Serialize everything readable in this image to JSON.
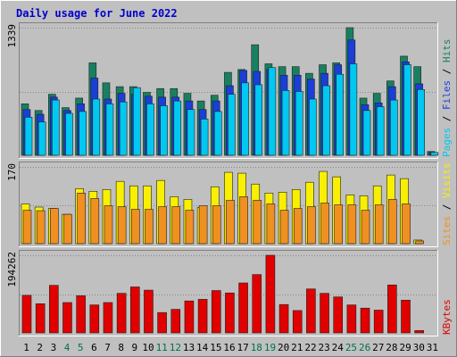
{
  "chart_data": {
    "type": "bar",
    "title": "Daily usage for June 2022",
    "categories": [
      "1",
      "2",
      "3",
      "4",
      "5",
      "6",
      "7",
      "8",
      "9",
      "10",
      "11",
      "12",
      "13",
      "14",
      "15",
      "16",
      "17",
      "18",
      "19",
      "20",
      "21",
      "22",
      "23",
      "24",
      "25",
      "26",
      "27",
      "28",
      "29",
      "30",
      "31"
    ],
    "weekend_categories": [
      "4",
      "5",
      "11",
      "12",
      "18",
      "19",
      "25",
      "26"
    ],
    "colors": {
      "background": "#c0c0c0",
      "plot": "#c0c0c0",
      "title": "#0000cc",
      "weekday_label": "#000000",
      "weekend_label": "#007050"
    },
    "panels": [
      {
        "name": "hits-files-pages",
        "ymax_label": "1339",
        "ylim": [
          0,
          1339
        ],
        "legend": [
          {
            "text": "Pages",
            "color": "#00c8f0"
          },
          {
            "text": " / ",
            "color": "#000000"
          },
          {
            "text": "Files",
            "color": "#1a3ed8"
          },
          {
            "text": " / ",
            "color": "#000000"
          },
          {
            "text": "Hits",
            "color": "#188060"
          }
        ],
        "series": [
          {
            "name": "Hits",
            "color": "#188060",
            "values": [
              540,
              470,
              640,
              500,
              600,
              970,
              760,
              720,
              720,
              660,
              700,
              700,
              650,
              570,
              630,
              870,
              900,
              1160,
              960,
              930,
              930,
              860,
              950,
              970,
              1339,
              600,
              650,
              780,
              1040,
              930,
              40
            ]
          },
          {
            "name": "Files",
            "color": "#1a3ed8",
            "values": [
              480,
              430,
              610,
              470,
              540,
              810,
              590,
              650,
              640,
              620,
              610,
              610,
              570,
              480,
              570,
              730,
              890,
              880,
              900,
              840,
              840,
              800,
              860,
              950,
              1210,
              530,
              550,
              720,
              980,
              750,
              30
            ]
          },
          {
            "name": "Pages",
            "color": "#00c8f0",
            "values": [
              400,
              350,
              580,
              440,
              460,
              590,
              540,
              560,
              710,
              540,
              520,
              570,
              480,
              380,
              460,
              640,
              760,
              740,
              920,
              680,
              670,
              590,
              730,
              850,
              960,
              470,
              510,
              580,
              950,
              690,
              30
            ]
          }
        ]
      },
      {
        "name": "visits-sites",
        "ymax_label": "170",
        "ylim": [
          0,
          170
        ],
        "legend": [
          {
            "text": "Sites",
            "color": "#f09020"
          },
          {
            "text": " / ",
            "color": "#000000"
          },
          {
            "text": "Visits",
            "color": "#f8f000"
          }
        ],
        "series": [
          {
            "name": "Visits",
            "color": "#f8f000",
            "values": [
              88,
              81,
              78,
              65,
              122,
              116,
              120,
              138,
              128,
              128,
              140,
              104,
              98,
              80,
              126,
              158,
              156,
              132,
              112,
              114,
              120,
              136,
              160,
              148,
              108,
              106,
              128,
              152,
              144,
              8,
              0
            ]
          },
          {
            "name": "Sites",
            "color": "#f09020",
            "values": [
              74,
              73,
              78,
              65,
              112,
              100,
              84,
              82,
              76,
              76,
              82,
              82,
              74,
              84,
              84,
              96,
              104,
              96,
              88,
              74,
              78,
              82,
              90,
              86,
              86,
              74,
              86,
              98,
              88,
              6,
              0
            ]
          }
        ]
      },
      {
        "name": "kbytes",
        "ymax_label": "194262",
        "ylim": [
          0,
          194262
        ],
        "legend": [
          {
            "text": "KBytes",
            "color": "#e00000"
          }
        ],
        "series": [
          {
            "name": "KBytes",
            "color": "#e00000",
            "values": [
              94000,
              73000,
              119000,
              76000,
              93000,
              70000,
              76000,
              99000,
              115000,
              107000,
              51000,
              59000,
              80000,
              84000,
              106000,
              100000,
              125000,
              146000,
              194262,
              71000,
              56000,
              110000,
              99000,
              90000,
              70000,
              62000,
              57000,
              120000,
              82000,
              6000,
              0
            ]
          }
        ]
      }
    ]
  }
}
